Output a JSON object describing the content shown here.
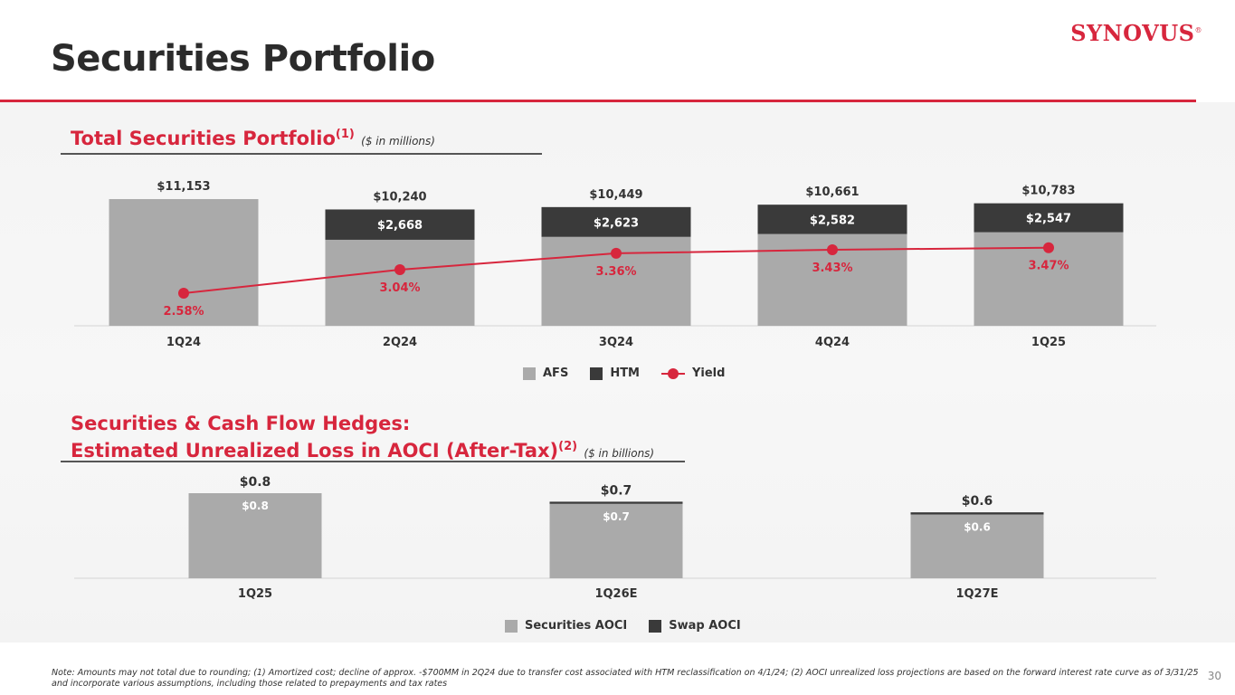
{
  "header": {
    "title": "Securities Portfolio",
    "logo_text": "SYNOVUS",
    "logo_mark": "®"
  },
  "colors": {
    "accent": "#d7263d",
    "afs": "#aaaaaa",
    "htm": "#3a3a3a",
    "yield": "#d7263d"
  },
  "chart_data": [
    {
      "type": "bar",
      "title": "Total Securities Portfolio",
      "title_sup": "(1)",
      "unit_note": "($ in millions)",
      "categories": [
        "1Q24",
        "2Q24",
        "3Q24",
        "4Q24",
        "1Q25"
      ],
      "totals": [
        11153,
        10240,
        10449,
        10661,
        10783
      ],
      "total_labels": [
        "$11,153",
        "$10,240",
        "$10,449",
        "$10,661",
        "$10,783"
      ],
      "series": [
        {
          "name": "AFS",
          "values": [
            11153,
            7572,
            7826,
            8079,
            8236
          ]
        },
        {
          "name": "HTM",
          "values": [
            0,
            2668,
            2623,
            2582,
            2547
          ],
          "labels": [
            "",
            "$2,668",
            "$2,623",
            "$2,582",
            "$2,547"
          ]
        },
        {
          "name": "Yield",
          "type": "line",
          "values": [
            2.58,
            3.04,
            3.36,
            3.43,
            3.47
          ],
          "labels": [
            "2.58%",
            "3.04%",
            "3.36%",
            "3.43%",
            "3.47%"
          ]
        }
      ],
      "legend": [
        "AFS",
        "HTM",
        "Yield"
      ]
    },
    {
      "type": "bar",
      "title_line1": "Securities & Cash Flow Hedges:",
      "title_line2": "Estimated Unrealized Loss in AOCI (After-Tax)",
      "title_sup": "(2)",
      "unit_note": "($ in billions)",
      "categories": [
        "1Q25",
        "1Q26E",
        "1Q27E"
      ],
      "totals": [
        0.8,
        0.7,
        0.6
      ],
      "total_labels": [
        "$0.8",
        "$0.7",
        "$0.6"
      ],
      "series": [
        {
          "name": "Securities AOCI",
          "values": [
            0.8,
            0.7,
            0.6
          ],
          "labels": [
            "$0.8",
            "$0.7",
            "$0.6"
          ]
        },
        {
          "name": "Swap AOCI",
          "values": [
            0.0,
            0.02,
            0.02
          ]
        }
      ],
      "legend": [
        "Securities AOCI",
        "Swap AOCI"
      ]
    }
  ],
  "footnote": "Note: Amounts may not total due to rounding; (1) Amortized cost; decline of approx. -$700MM in 2Q24 due to transfer cost associated with HTM reclassification on 4/1/24; (2) AOCI unrealized loss projections are based on the forward interest rate curve as of 3/31/25 and incorporate various assumptions, including those related to prepayments and tax rates",
  "page_number": "30"
}
